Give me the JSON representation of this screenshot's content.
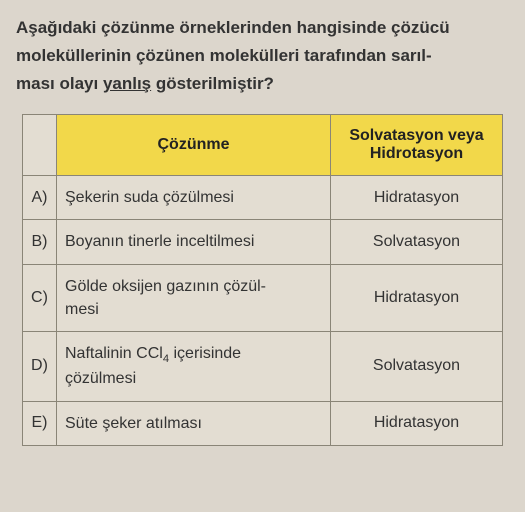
{
  "question": {
    "line1": "Aşağıdaki çözünme örneklerinden hangisinde çözücü",
    "line2": "moleküllerinin çözünen molekülleri tarafından sarıl-",
    "line3_a": "ması olayı ",
    "line3_u": "yanlış",
    "line3_b": " gösterilmiştir?"
  },
  "headers": {
    "col1": "Çözünme",
    "col2_l1": "Solvatasyon veya",
    "col2_l2": "Hidrotasyon"
  },
  "rows": [
    {
      "opt": "A)",
      "desc_html": "Şekerin suda çözülmesi",
      "ans": "Hidratasyon"
    },
    {
      "opt": "B)",
      "desc_html": "Boyanın tinerle inceltilmesi",
      "ans": "Solvatasyon"
    },
    {
      "opt": "C)",
      "desc_html": "Gölde oksijen gazının çözül-<br>mesi",
      "ans": "Hidratasyon"
    },
    {
      "opt": "D)",
      "desc_html": "Naftalinin CCl<sub>4</sub> içerisinde<br>çözülmesi",
      "ans": "Solvatasyon"
    },
    {
      "opt": "E)",
      "desc_html": "Süte şeker atılması",
      "ans": "Hidratasyon"
    }
  ],
  "style": {
    "background": "#dcd6cc",
    "cell_bg": "#e3ddd2",
    "header_bg": "#f2d84a",
    "border": "#8a8577",
    "text": "#2a2a2a"
  }
}
